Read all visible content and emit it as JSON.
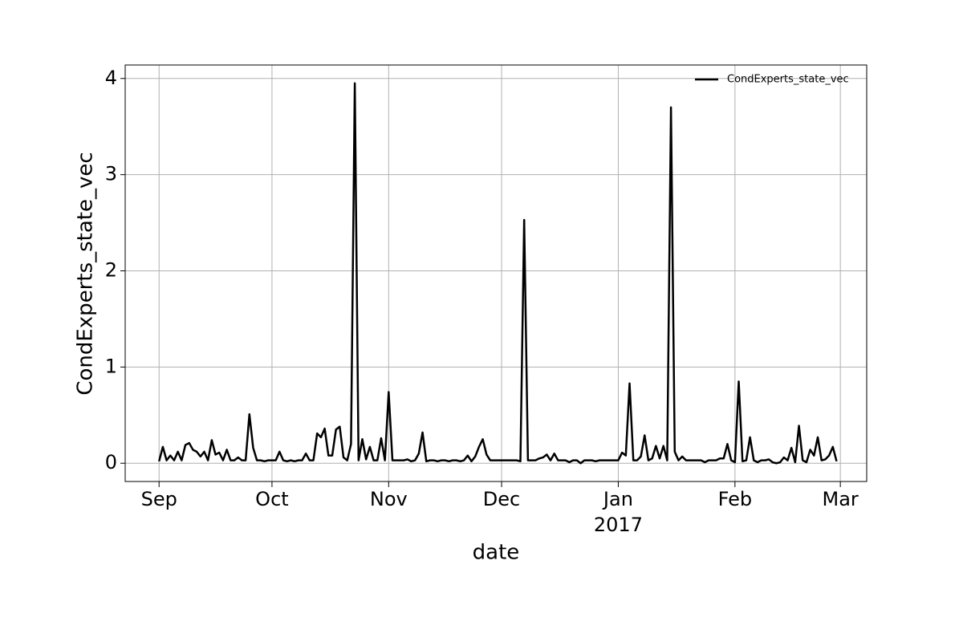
{
  "chart_data": {
    "type": "line",
    "x_label": "date",
    "y_label": "CondExperts_state_vec",
    "x": [
      "2016-09-01",
      "2016-09-02",
      "2016-09-03",
      "2016-09-04",
      "2016-09-05",
      "2016-09-06",
      "2016-09-07",
      "2016-09-08",
      "2016-09-09",
      "2016-09-10",
      "2016-09-11",
      "2016-09-12",
      "2016-09-13",
      "2016-09-14",
      "2016-09-15",
      "2016-09-16",
      "2016-09-17",
      "2016-09-18",
      "2016-09-19",
      "2016-09-20",
      "2016-09-21",
      "2016-09-22",
      "2016-09-23",
      "2016-09-24",
      "2016-09-25",
      "2016-09-26",
      "2016-09-27",
      "2016-09-28",
      "2016-09-29",
      "2016-09-30",
      "2016-10-01",
      "2016-10-02",
      "2016-10-03",
      "2016-10-04",
      "2016-10-05",
      "2016-10-06",
      "2016-10-07",
      "2016-10-08",
      "2016-10-09",
      "2016-10-10",
      "2016-10-11",
      "2016-10-12",
      "2016-10-13",
      "2016-10-14",
      "2016-10-15",
      "2016-10-16",
      "2016-10-17",
      "2016-10-18",
      "2016-10-19",
      "2016-10-20",
      "2016-10-21",
      "2016-10-22",
      "2016-10-23",
      "2016-10-24",
      "2016-10-25",
      "2016-10-26",
      "2016-10-27",
      "2016-10-28",
      "2016-10-29",
      "2016-10-30",
      "2016-10-31",
      "2016-11-01",
      "2016-11-02",
      "2016-11-03",
      "2016-11-04",
      "2016-11-05",
      "2016-11-06",
      "2016-11-07",
      "2016-11-08",
      "2016-11-09",
      "2016-11-10",
      "2016-11-11",
      "2016-11-12",
      "2016-11-13",
      "2016-11-14",
      "2016-11-15",
      "2016-11-16",
      "2016-11-17",
      "2016-11-18",
      "2016-11-19",
      "2016-11-20",
      "2016-11-21",
      "2016-11-22",
      "2016-11-23",
      "2016-11-24",
      "2016-11-25",
      "2016-11-26",
      "2016-11-27",
      "2016-11-28",
      "2016-11-29",
      "2016-11-30",
      "2016-12-01",
      "2016-12-02",
      "2016-12-03",
      "2016-12-04",
      "2016-12-05",
      "2016-12-06",
      "2016-12-07",
      "2016-12-08",
      "2016-12-09",
      "2016-12-10",
      "2016-12-11",
      "2016-12-12",
      "2016-12-13",
      "2016-12-14",
      "2016-12-15",
      "2016-12-16",
      "2016-12-17",
      "2016-12-18",
      "2016-12-19",
      "2016-12-20",
      "2016-12-21",
      "2016-12-22",
      "2016-12-23",
      "2016-12-24",
      "2016-12-25",
      "2016-12-26",
      "2016-12-27",
      "2016-12-28",
      "2016-12-29",
      "2016-12-30",
      "2016-12-31",
      "2017-01-01",
      "2017-01-02",
      "2017-01-03",
      "2017-01-04",
      "2017-01-05",
      "2017-01-06",
      "2017-01-07",
      "2017-01-08",
      "2017-01-09",
      "2017-01-10",
      "2017-01-11",
      "2017-01-12",
      "2017-01-13",
      "2017-01-14",
      "2017-01-15",
      "2017-01-16",
      "2017-01-17",
      "2017-01-18",
      "2017-01-19",
      "2017-01-20",
      "2017-01-21",
      "2017-01-22",
      "2017-01-23",
      "2017-01-24",
      "2017-01-25",
      "2017-01-26",
      "2017-01-27",
      "2017-01-28",
      "2017-01-29",
      "2017-01-30",
      "2017-01-31",
      "2017-02-01",
      "2017-02-02",
      "2017-02-03",
      "2017-02-04",
      "2017-02-05",
      "2017-02-06",
      "2017-02-07",
      "2017-02-08",
      "2017-02-09",
      "2017-02-10",
      "2017-02-11",
      "2017-02-12",
      "2017-02-13",
      "2017-02-14",
      "2017-02-15",
      "2017-02-16",
      "2017-02-17",
      "2017-02-18",
      "2017-02-19",
      "2017-02-20",
      "2017-02-21",
      "2017-02-22",
      "2017-02-23",
      "2017-02-24",
      "2017-02-25",
      "2017-02-26",
      "2017-02-27",
      "2017-02-28"
    ],
    "series": [
      {
        "name": "CondExperts_state_vec",
        "color": "#000000",
        "values": [
          0.02,
          0.17,
          0.03,
          0.08,
          0.03,
          0.12,
          0.03,
          0.19,
          0.21,
          0.14,
          0.12,
          0.07,
          0.12,
          0.03,
          0.24,
          0.09,
          0.11,
          0.03,
          0.14,
          0.03,
          0.03,
          0.06,
          0.03,
          0.03,
          0.51,
          0.16,
          0.03,
          0.03,
          0.02,
          0.03,
          0.03,
          0.03,
          0.12,
          0.03,
          0.02,
          0.03,
          0.02,
          0.03,
          0.03,
          0.1,
          0.03,
          0.03,
          0.31,
          0.27,
          0.36,
          0.08,
          0.08,
          0.35,
          0.38,
          0.06,
          0.03,
          0.2,
          3.95,
          0.03,
          0.25,
          0.04,
          0.17,
          0.03,
          0.03,
          0.26,
          0.03,
          0.74,
          0.03,
          0.03,
          0.03,
          0.03,
          0.04,
          0.02,
          0.03,
          0.1,
          0.32,
          0.02,
          0.03,
          0.03,
          0.02,
          0.03,
          0.03,
          0.02,
          0.03,
          0.03,
          0.02,
          0.03,
          0.08,
          0.02,
          0.07,
          0.17,
          0.25,
          0.09,
          0.03,
          0.03,
          0.03,
          0.03,
          0.03,
          0.03,
          0.03,
          0.03,
          0.02,
          2.53,
          0.03,
          0.03,
          0.03,
          0.05,
          0.06,
          0.09,
          0.03,
          0.1,
          0.03,
          0.03,
          0.03,
          0.01,
          0.03,
          0.03,
          0.0,
          0.03,
          0.03,
          0.03,
          0.02,
          0.03,
          0.03,
          0.03,
          0.03,
          0.03,
          0.03,
          0.11,
          0.08,
          0.83,
          0.03,
          0.03,
          0.07,
          0.29,
          0.03,
          0.05,
          0.18,
          0.05,
          0.18,
          0.03,
          3.7,
          0.12,
          0.03,
          0.07,
          0.03,
          0.03,
          0.03,
          0.03,
          0.03,
          0.01,
          0.03,
          0.03,
          0.03,
          0.05,
          0.05,
          0.2,
          0.03,
          0.01,
          0.85,
          0.02,
          0.03,
          0.27,
          0.03,
          0.01,
          0.03,
          0.03,
          0.04,
          0.01,
          0.0,
          0.01,
          0.06,
          0.03,
          0.16,
          0.01,
          0.39,
          0.03,
          0.01,
          0.14,
          0.08,
          0.27,
          0.03,
          0.04,
          0.08,
          0.17,
          0.02
        ]
      }
    ],
    "xlim": [
      "2016-08-23",
      "2017-03-08"
    ],
    "xticks": [
      {
        "value": "2016-09-01",
        "label": "Sep"
      },
      {
        "value": "2016-10-01",
        "label": "Oct"
      },
      {
        "value": "2016-11-01",
        "label": "Nov"
      },
      {
        "value": "2016-12-01",
        "label": "Dec"
      },
      {
        "value": "2017-01-01",
        "label": "Jan"
      },
      {
        "value": "2017-02-01",
        "label": "Feb"
      },
      {
        "value": "2017-03-01",
        "label": "Mar"
      }
    ],
    "xtick_sublabels": [
      {
        "value": "2017-01-01",
        "label": "2017"
      }
    ],
    "ylim": [
      -0.19,
      4.14
    ],
    "yticks": [
      0,
      1,
      2,
      3,
      4
    ],
    "grid": true,
    "legend": "upper right"
  }
}
